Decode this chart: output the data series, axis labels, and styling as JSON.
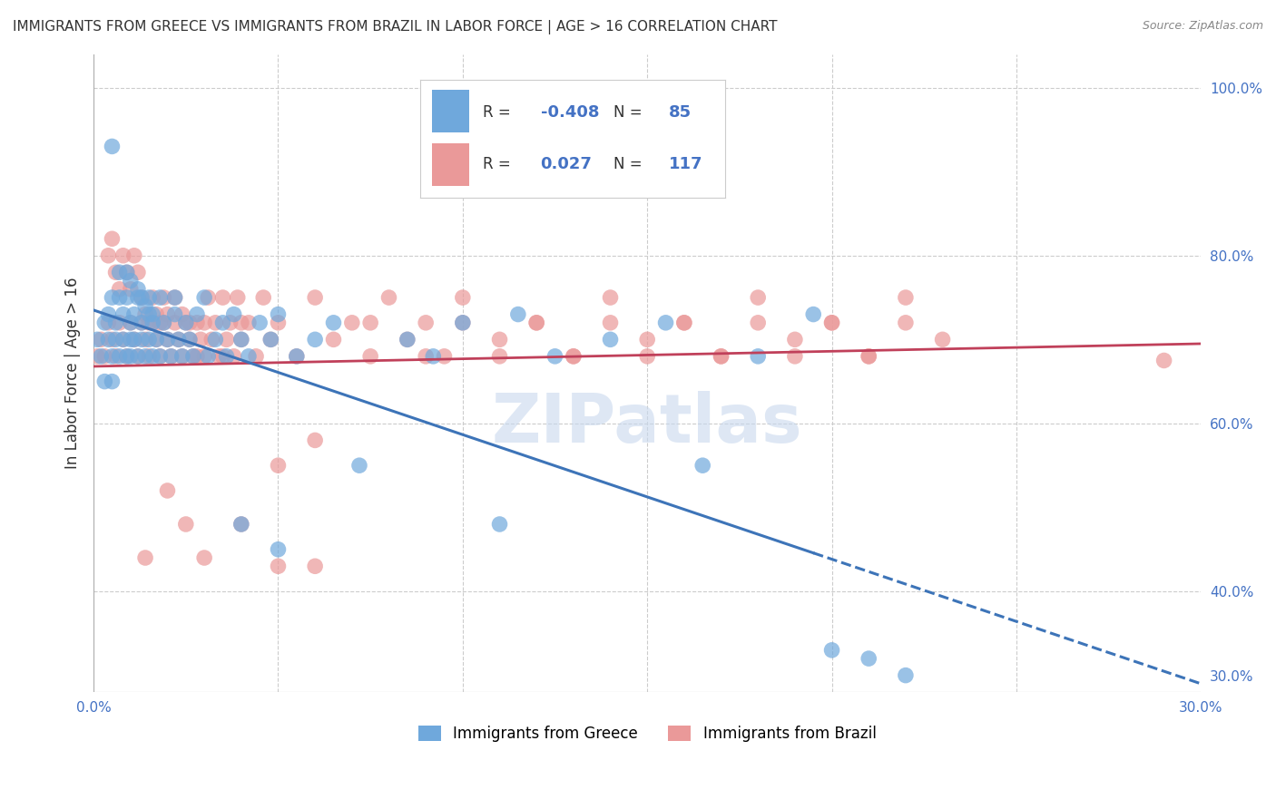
{
  "title": "IMMIGRANTS FROM GREECE VS IMMIGRANTS FROM BRAZIL IN LABOR FORCE | AGE > 16 CORRELATION CHART",
  "source": "Source: ZipAtlas.com",
  "ylabel": "In Labor Force | Age > 16",
  "xlim": [
    0.0,
    0.3
  ],
  "ylim": [
    0.28,
    1.04
  ],
  "xticks": [
    0.0,
    0.05,
    0.1,
    0.15,
    0.2,
    0.25,
    0.3
  ],
  "yticks_right": [
    1.0,
    0.8,
    0.6,
    0.4,
    0.3
  ],
  "yticklabels_right": [
    "100.0%",
    "80.0%",
    "60.0%",
    "40.0%",
    "30.0%"
  ],
  "greece_color": "#6fa8dc",
  "brazil_color": "#ea9999",
  "greece_R": -0.408,
  "greece_N": 85,
  "brazil_R": 0.027,
  "brazil_N": 117,
  "trend_greece_x0": 0.0,
  "trend_greece_y0": 0.735,
  "trend_greece_x1": 0.3,
  "trend_greece_y1": 0.29,
  "trend_greece_solid_end": 0.195,
  "trend_brazil_x0": 0.0,
  "trend_brazil_y0": 0.668,
  "trend_brazil_x1": 0.3,
  "trend_brazil_y1": 0.695,
  "trend_greece_color": "#3d74b8",
  "trend_brazil_color": "#c0405a",
  "watermark": "ZIPatlas",
  "legend_label_greece": "Immigrants from Greece",
  "legend_label_brazil": "Immigrants from Brazil",
  "greece_x": [
    0.001,
    0.002,
    0.003,
    0.003,
    0.004,
    0.004,
    0.005,
    0.005,
    0.005,
    0.006,
    0.006,
    0.007,
    0.007,
    0.008,
    0.008,
    0.009,
    0.009,
    0.01,
    0.01,
    0.01,
    0.011,
    0.011,
    0.012,
    0.012,
    0.013,
    0.013,
    0.014,
    0.015,
    0.015,
    0.016,
    0.016,
    0.017,
    0.018,
    0.018,
    0.019,
    0.02,
    0.021,
    0.022,
    0.022,
    0.023,
    0.024,
    0.025,
    0.026,
    0.027,
    0.028,
    0.03,
    0.031,
    0.033,
    0.035,
    0.036,
    0.038,
    0.04,
    0.042,
    0.045,
    0.048,
    0.05,
    0.055,
    0.06,
    0.065,
    0.072,
    0.085,
    0.092,
    0.1,
    0.11,
    0.115,
    0.125,
    0.14,
    0.155,
    0.165,
    0.18,
    0.195,
    0.005,
    0.007,
    0.009,
    0.01,
    0.012,
    0.013,
    0.014,
    0.015,
    0.016,
    0.04,
    0.05,
    0.2,
    0.21,
    0.22
  ],
  "greece_y": [
    0.7,
    0.68,
    0.72,
    0.65,
    0.7,
    0.73,
    0.68,
    0.75,
    0.65,
    0.7,
    0.72,
    0.75,
    0.68,
    0.7,
    0.73,
    0.68,
    0.75,
    0.7,
    0.68,
    0.72,
    0.73,
    0.7,
    0.68,
    0.75,
    0.7,
    0.72,
    0.68,
    0.75,
    0.7,
    0.73,
    0.68,
    0.7,
    0.75,
    0.68,
    0.72,
    0.7,
    0.68,
    0.73,
    0.75,
    0.7,
    0.68,
    0.72,
    0.7,
    0.68,
    0.73,
    0.75,
    0.68,
    0.7,
    0.72,
    0.68,
    0.73,
    0.7,
    0.68,
    0.72,
    0.7,
    0.73,
    0.68,
    0.7,
    0.72,
    0.55,
    0.7,
    0.68,
    0.72,
    0.48,
    0.73,
    0.68,
    0.7,
    0.72,
    0.55,
    0.68,
    0.73,
    0.93,
    0.78,
    0.78,
    0.77,
    0.76,
    0.75,
    0.74,
    0.73,
    0.72,
    0.48,
    0.45,
    0.33,
    0.32,
    0.3
  ],
  "brazil_x": [
    0.001,
    0.002,
    0.003,
    0.004,
    0.005,
    0.006,
    0.007,
    0.008,
    0.009,
    0.01,
    0.011,
    0.012,
    0.013,
    0.014,
    0.015,
    0.016,
    0.017,
    0.018,
    0.019,
    0.02,
    0.021,
    0.022,
    0.023,
    0.024,
    0.025,
    0.026,
    0.027,
    0.028,
    0.029,
    0.03,
    0.031,
    0.032,
    0.033,
    0.034,
    0.035,
    0.036,
    0.037,
    0.038,
    0.039,
    0.04,
    0.042,
    0.044,
    0.046,
    0.048,
    0.05,
    0.055,
    0.06,
    0.065,
    0.07,
    0.075,
    0.08,
    0.085,
    0.09,
    0.095,
    0.1,
    0.11,
    0.12,
    0.13,
    0.14,
    0.15,
    0.16,
    0.17,
    0.18,
    0.19,
    0.2,
    0.21,
    0.22,
    0.23,
    0.004,
    0.005,
    0.006,
    0.007,
    0.008,
    0.009,
    0.01,
    0.011,
    0.012,
    0.013,
    0.014,
    0.015,
    0.016,
    0.017,
    0.018,
    0.019,
    0.02,
    0.022,
    0.024,
    0.026,
    0.028,
    0.03,
    0.035,
    0.04,
    0.05,
    0.06,
    0.075,
    0.09,
    0.1,
    0.11,
    0.12,
    0.13,
    0.14,
    0.15,
    0.16,
    0.17,
    0.18,
    0.19,
    0.2,
    0.21,
    0.22,
    0.29,
    0.014,
    0.02,
    0.025,
    0.03,
    0.04,
    0.05,
    0.06
  ],
  "brazil_y": [
    0.68,
    0.7,
    0.68,
    0.72,
    0.7,
    0.68,
    0.72,
    0.7,
    0.68,
    0.72,
    0.7,
    0.68,
    0.72,
    0.7,
    0.68,
    0.72,
    0.7,
    0.68,
    0.72,
    0.7,
    0.68,
    0.72,
    0.7,
    0.68,
    0.72,
    0.7,
    0.68,
    0.72,
    0.7,
    0.68,
    0.75,
    0.7,
    0.72,
    0.68,
    0.75,
    0.7,
    0.72,
    0.68,
    0.75,
    0.7,
    0.72,
    0.68,
    0.75,
    0.7,
    0.72,
    0.68,
    0.75,
    0.7,
    0.72,
    0.68,
    0.75,
    0.7,
    0.72,
    0.68,
    0.75,
    0.7,
    0.72,
    0.68,
    0.75,
    0.7,
    0.72,
    0.68,
    0.75,
    0.7,
    0.72,
    0.68,
    0.75,
    0.7,
    0.8,
    0.82,
    0.78,
    0.76,
    0.8,
    0.78,
    0.76,
    0.8,
    0.78,
    0.75,
    0.73,
    0.72,
    0.75,
    0.73,
    0.72,
    0.75,
    0.73,
    0.75,
    0.73,
    0.72,
    0.68,
    0.72,
    0.68,
    0.72,
    0.55,
    0.58,
    0.72,
    0.68,
    0.72,
    0.68,
    0.72,
    0.68,
    0.72,
    0.68,
    0.72,
    0.68,
    0.72,
    0.68,
    0.72,
    0.68,
    0.72,
    0.675,
    0.44,
    0.52,
    0.48,
    0.44,
    0.48,
    0.43,
    0.43
  ]
}
